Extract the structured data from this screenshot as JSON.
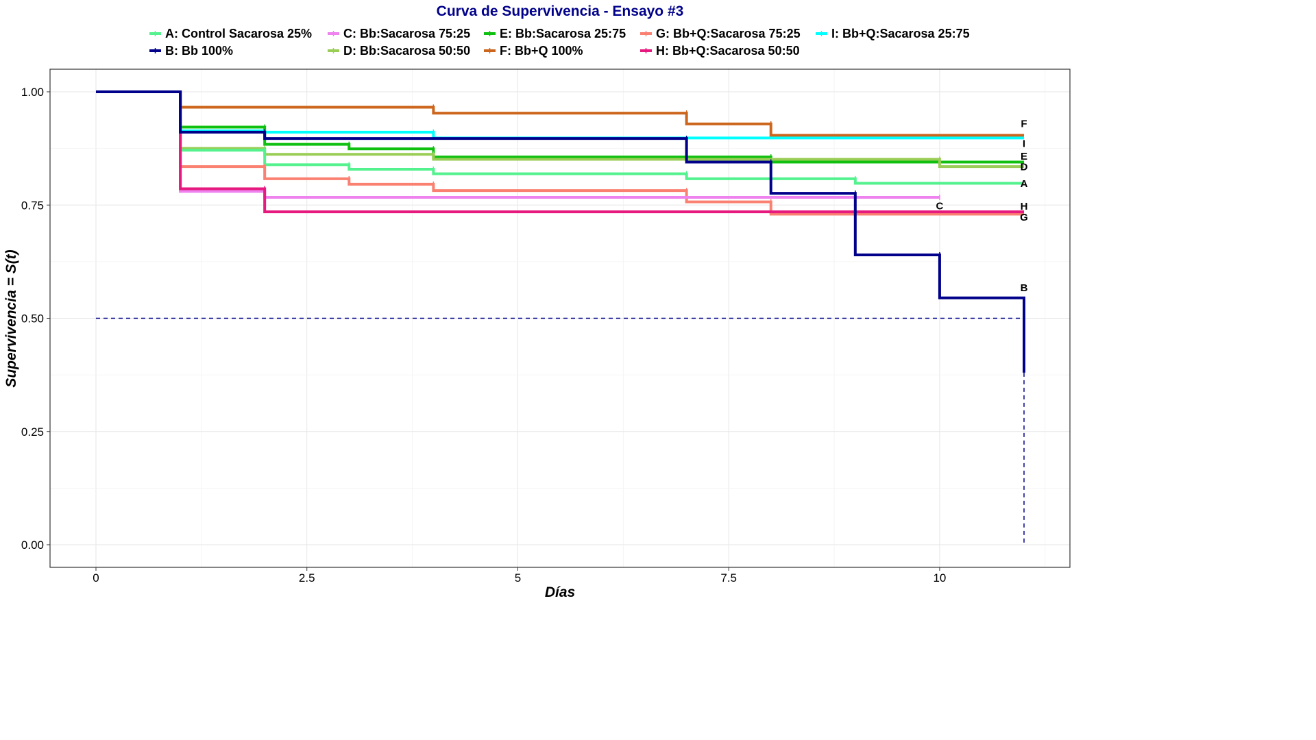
{
  "chart_data": {
    "type": "line",
    "title": "Curva de Supervivencia - Ensayo #3",
    "xlabel": "Días",
    "ylabel": "Supervivencia = S(t)",
    "xlim": [
      0,
      11
    ],
    "ylim": [
      0,
      1
    ],
    "x_ticks": [
      "0",
      "2.5",
      "5",
      "7.5",
      "10"
    ],
    "x_tick_values": [
      0,
      2.5,
      5,
      7.5,
      10
    ],
    "y_ticks": [
      "0.00",
      "0.25",
      "0.50",
      "0.75",
      "1.00"
    ],
    "y_tick_values": [
      0,
      0.25,
      0.5,
      0.75,
      1.0
    ],
    "grid": true,
    "legend_position": "top",
    "median_line": {
      "y": 0.5,
      "x_end": 11,
      "x_drop": 11
    },
    "series": [
      {
        "name": "A: Control Sacarosa 25%",
        "label": "A",
        "color": "#54f28e",
        "x": [
          0,
          1,
          2,
          3,
          4,
          7,
          9,
          11
        ],
        "y": [
          1.0,
          0.871,
          0.839,
          0.829,
          0.819,
          0.808,
          0.798,
          0.798
        ]
      },
      {
        "name": "B: Bb 100%",
        "label": "B",
        "color": "#00008b",
        "x": [
          0,
          1,
          2,
          7,
          8,
          9,
          10,
          11
        ],
        "y": [
          1.0,
          0.911,
          0.897,
          0.845,
          0.776,
          0.64,
          0.545,
          0.38
        ]
      },
      {
        "name": "C: Bb:Sacarosa 75:25",
        "label": "C",
        "color": "#ee82ee",
        "x": [
          0,
          1,
          2,
          10
        ],
        "y": [
          1.0,
          0.78,
          0.767,
          0.767
        ]
      },
      {
        "name": "D: Bb:Sacarosa 50:50",
        "label": "D",
        "color": "#9acd55",
        "x": [
          0,
          1,
          2,
          4,
          10,
          11
        ],
        "y": [
          1.0,
          0.875,
          0.862,
          0.851,
          0.835,
          0.835
        ]
      },
      {
        "name": "E: Bb:Sacarosa 25:75",
        "label": "E",
        "color": "#10c010",
        "x": [
          0,
          1,
          2,
          3,
          4,
          8,
          11
        ],
        "y": [
          1.0,
          0.922,
          0.884,
          0.874,
          0.856,
          0.845,
          0.845
        ]
      },
      {
        "name": "F: Bb+Q 100%",
        "label": "F",
        "color": "#cd661d",
        "x": [
          0,
          1,
          4,
          7,
          8,
          11
        ],
        "y": [
          1.0,
          0.966,
          0.953,
          0.929,
          0.904,
          0.904
        ]
      },
      {
        "name": "G: Bb+Q:Sacarosa 75:25",
        "label": "G",
        "color": "#fa8072",
        "x": [
          0,
          1,
          2,
          3,
          4,
          7,
          8,
          11
        ],
        "y": [
          1.0,
          0.835,
          0.808,
          0.796,
          0.782,
          0.757,
          0.73,
          0.73
        ]
      },
      {
        "name": "H: Bb+Q:Sacarosa 50:50",
        "label": "H",
        "color": "#e6197f",
        "x": [
          0,
          1,
          2,
          11
        ],
        "y": [
          1.0,
          0.786,
          0.735,
          0.735
        ]
      },
      {
        "name": "I: Bb+Q:Sacarosa 25:75",
        "label": "I",
        "color": "#00ffff",
        "x": [
          0,
          1,
          2,
          4,
          11
        ],
        "y": [
          1.0,
          0.914,
          0.911,
          0.898,
          0.898
        ]
      }
    ]
  }
}
